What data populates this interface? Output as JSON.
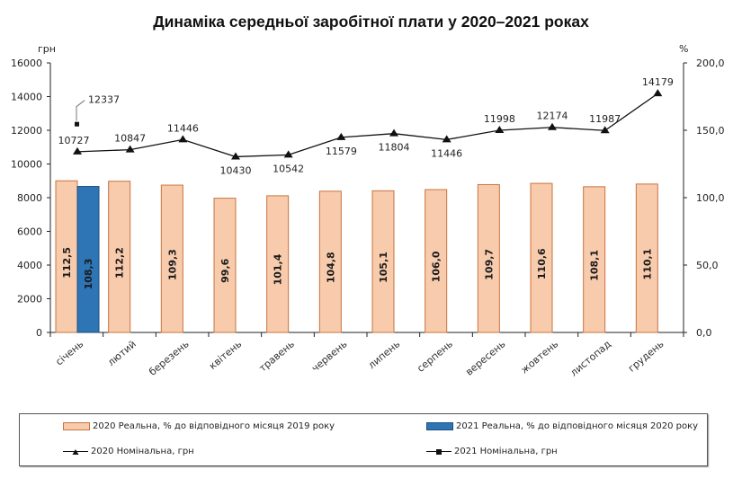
{
  "chart_data": {
    "type": "bar",
    "title": "Динаміка середньої заробітної плати у 2020–2021 роках",
    "left_axis": {
      "unit_label": "грн",
      "range": [
        0,
        16000
      ],
      "ticks": [
        "0",
        "2000",
        "4000",
        "6000",
        "8000",
        "10000",
        "12000",
        "14000",
        "16000"
      ],
      "tick_values": [
        0,
        2000,
        4000,
        6000,
        8000,
        10000,
        12000,
        14000,
        16000
      ]
    },
    "right_axis": {
      "unit_label": "%",
      "range": [
        0,
        200
      ],
      "ticks": [
        "0,0",
        "50,0",
        "100,0",
        "150,0",
        "200,0"
      ],
      "tick_values": [
        0,
        50,
        100,
        150,
        200
      ]
    },
    "categories": [
      "січень",
      "лютий",
      "березень",
      "квітень",
      "травень",
      "червень",
      "липень",
      "серпень",
      "вересень",
      "жовтень",
      "листопад",
      "грудень"
    ],
    "series": [
      {
        "name": "2020 Реальна, % до відповідного місяця 2019 року",
        "kind": "bar",
        "axis": "right",
        "color": "#f8cbad",
        "border": "#c8743f",
        "values": [
          112.5,
          112.2,
          109.3,
          99.6,
          101.4,
          104.8,
          105.1,
          106.0,
          109.7,
          110.6,
          108.1,
          110.1
        ],
        "labels": [
          "112,5",
          "112,2",
          "109,3",
          "99,6",
          "101,4",
          "104,8",
          "105,1",
          "106,0",
          "109,7",
          "110,6",
          "108,1",
          "110,1"
        ]
      },
      {
        "name": "2021 Реальна, % до відповідного місяця 2020 року",
        "kind": "bar",
        "axis": "right",
        "color": "#2e75b6",
        "border": "#1f4e79",
        "values": [
          108.3,
          null,
          null,
          null,
          null,
          null,
          null,
          null,
          null,
          null,
          null,
          null
        ],
        "labels": [
          "108,3",
          null,
          null,
          null,
          null,
          null,
          null,
          null,
          null,
          null,
          null,
          null
        ]
      },
      {
        "name": "2020 Номінальна, грн",
        "kind": "line",
        "marker": "triangle",
        "axis": "left",
        "color": "#111111",
        "values": [
          10727,
          10847,
          11446,
          10430,
          10542,
          11579,
          11804,
          11446,
          11998,
          12174,
          11987,
          14179
        ],
        "labels": [
          "10727",
          "10847",
          "11446",
          "10430",
          "10542",
          "11579",
          "11804",
          "11446",
          "11998",
          "12174",
          "11987",
          "14179"
        ]
      },
      {
        "name": "2021 Номінальна, грн",
        "kind": "line",
        "marker": "square",
        "axis": "left",
        "color": "#111111",
        "values": [
          12337,
          null,
          null,
          null,
          null,
          null,
          null,
          null,
          null,
          null,
          null,
          null
        ],
        "labels": [
          "12337",
          null,
          null,
          null,
          null,
          null,
          null,
          null,
          null,
          null,
          null,
          null
        ]
      }
    ],
    "legend": {
      "placement": "bottom",
      "entries": [
        "2020 Реальна, % до відповідного місяця 2019 року",
        "2021 Реальна, % до відповідного місяця 2020 року",
        "2020 Номінальна, грн",
        "2021 Номінальна, грн"
      ]
    },
    "grid": false
  }
}
